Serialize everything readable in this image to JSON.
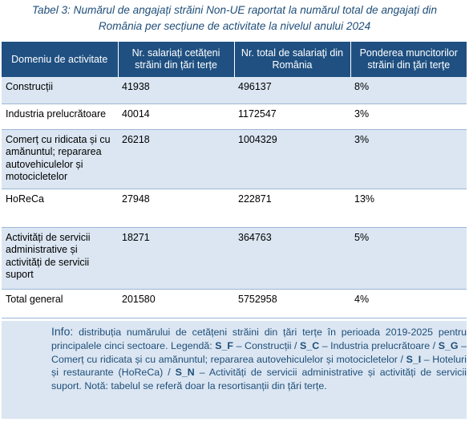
{
  "caption": {
    "line1": "Tabel 3: Numărul de angajați străini Non-UE raportat la numărul total de angajați din",
    "line2": "România per secțiune de activitate la nivelul anului 2024"
  },
  "table": {
    "headers": [
      "Domeniu de activitate",
      "Nr. salariați cetățeni străini din țări terțe",
      "Nr. total de salariaţi din România",
      "Ponderea muncitorilor străini din ţări terţe"
    ],
    "rows": [
      [
        "Construcții",
        "41938",
        "496137",
        "8%"
      ],
      [
        "Industria prelucrătoare",
        "40014",
        "1172547",
        "3%"
      ],
      [
        "Comerț cu ridicata și cu amănuntul; repararea autovehiculelor și motocicletelor",
        "26218",
        "1004329",
        "3%"
      ],
      [
        "HoReCa",
        "27948",
        "222871",
        "13%"
      ],
      [
        "Activități de servicii administrative și activități de servicii suport",
        "18271",
        "364763",
        "5%"
      ],
      [
        "Total general",
        "201580",
        "5752958",
        "4%"
      ]
    ]
  },
  "info": {
    "label": "Info:",
    "intro": "distribuția numărului de cetățeni străini din țări terțe în perioada 2019-2025 pentru principalele cinci sectoare. Legendă:",
    "codes": [
      "S_F",
      "S_C",
      "S_G",
      "S_I",
      "S_N"
    ],
    "descs": [
      "– Construcții  /",
      "– Industria prelucrătoare /",
      "– Comerț cu ridicata și cu amănuntul; repararea autovehiculelor și motocicletelor /",
      "– Hoteluri și restaurante (HoReCa) /",
      "– Activități de servicii administrative și activități de servicii suport."
    ],
    "note": "Notă: tabelul se referă doar la resortisanții din țări terțe."
  }
}
